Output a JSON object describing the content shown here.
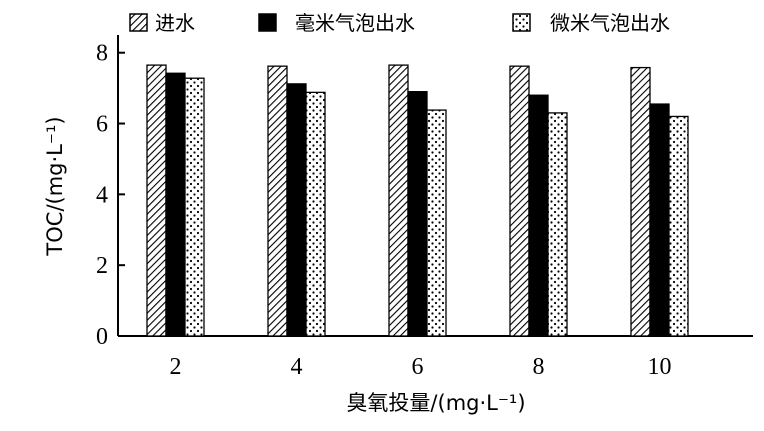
{
  "chart_data": {
    "type": "bar",
    "categories": [
      "2",
      "4",
      "6",
      "8",
      "10"
    ],
    "series": [
      {
        "name": "进水",
        "values": [
          7.65,
          7.62,
          7.65,
          7.62,
          7.58
        ],
        "pattern": "hatch"
      },
      {
        "name": "毫米气泡出水",
        "values": [
          7.42,
          7.12,
          6.9,
          6.8,
          6.55
        ],
        "pattern": "solid"
      },
      {
        "name": "微米气泡出水",
        "values": [
          7.28,
          6.88,
          6.38,
          6.3,
          6.2
        ],
        "pattern": "dots"
      }
    ],
    "y_ticks": [
      "0",
      "2",
      "4",
      "6",
      "8"
    ],
    "ylim": [
      0,
      8.5
    ],
    "xlabel": "臭氧投量/(mg·L⁻¹)",
    "ylabel": "TOC/(mg·L⁻¹)",
    "legend_position": "top",
    "grid": false,
    "colors": {
      "solid": "#000000",
      "hatch": "#000000",
      "background": "#ffffff"
    }
  }
}
